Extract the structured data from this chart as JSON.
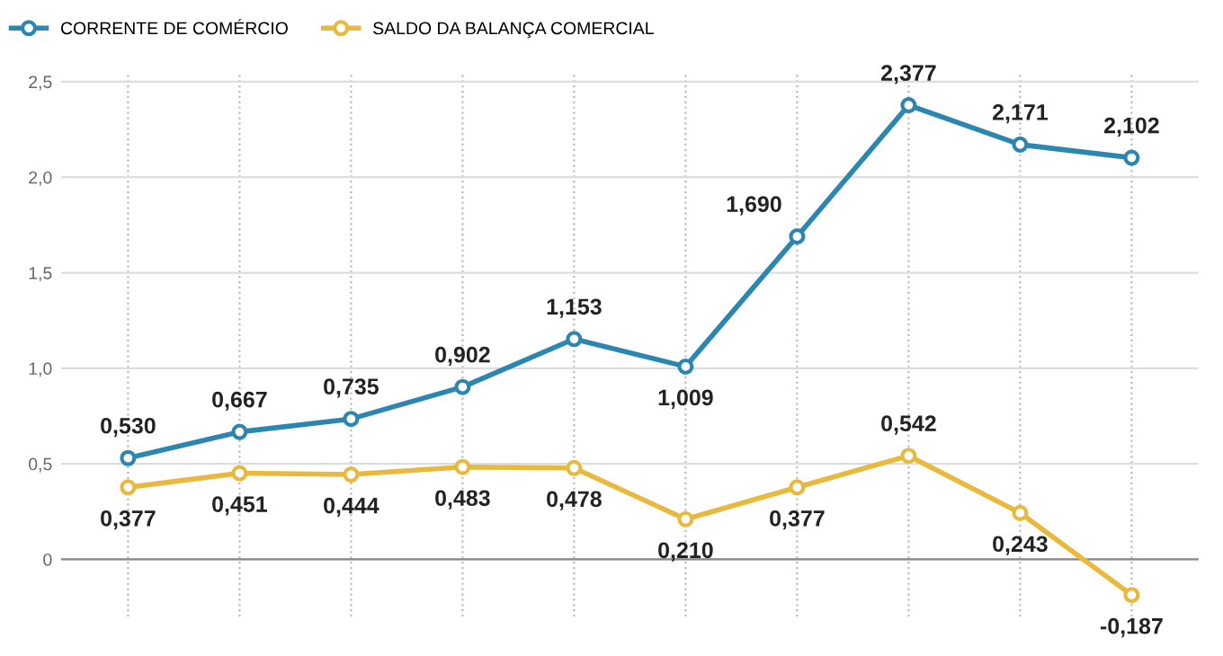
{
  "chart_data": {
    "type": "line",
    "categories": [
      null,
      null,
      null,
      null,
      null,
      null,
      null,
      null,
      null,
      null
    ],
    "series": [
      {
        "name": "CORRENTE DE COMÉRCIO",
        "color": "#2b86b0",
        "values": [
          0.53,
          0.667,
          0.735,
          0.902,
          1.153,
          1.009,
          1.69,
          2.377,
          2.171,
          2.102
        ],
        "value_labels": [
          "0,530",
          "0,667",
          "0,735",
          "0,902",
          "1,153",
          "1,009",
          "1,690",
          "2,377",
          "2,171",
          "2,102"
        ]
      },
      {
        "name": "SALDO DA BALANÇA COMERCIAL",
        "color": "#e8b93c",
        "values": [
          0.377,
          0.451,
          0.444,
          0.483,
          0.478,
          0.21,
          0.377,
          0.542,
          0.243,
          -0.187
        ],
        "value_labels": [
          "0,377",
          "0,451",
          "0,444",
          "0,483",
          "0,478",
          "0,210",
          "0,377",
          "0,542",
          "0,243",
          "-0,187"
        ]
      }
    ],
    "ylim": [
      -0.3,
      2.55
    ],
    "yticks": [
      {
        "value": 0,
        "label": "0"
      },
      {
        "value": 0.5,
        "label": "0,5"
      },
      {
        "value": 1.0,
        "label": "1,0"
      },
      {
        "value": 1.5,
        "label": "1,5"
      },
      {
        "value": 2.0,
        "label": "2,0"
      },
      {
        "value": 2.5,
        "label": "2,5"
      }
    ],
    "grid": true,
    "legend": "top left",
    "marker": "circle",
    "line_style": "solid"
  }
}
